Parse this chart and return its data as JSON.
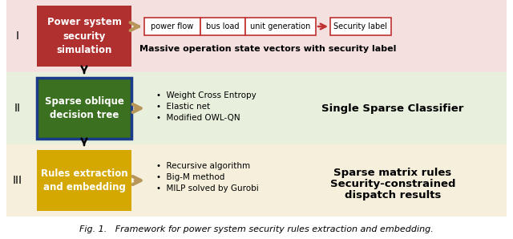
{
  "fig_width": 6.4,
  "fig_height": 2.98,
  "dpi": 100,
  "bg_color": "#ffffff",
  "row_colors": [
    "#f5e0e0",
    "#e8efdc",
    "#f5efdc"
  ],
  "left_box_colors": [
    "#b03030",
    "#3a7020",
    "#d4a800"
  ],
  "left_box_edge_colors": [
    "#b03030",
    "#1a4090",
    "#d4a800"
  ],
  "left_box_texts": [
    "Power system\nsecurity\nsimulation",
    "Sparse oblique\ndecision tree",
    "Rules extraction\nand embedding"
  ],
  "roman_numerals": [
    "I",
    "II",
    "III"
  ],
  "feat_labels": [
    "power flow",
    "bus load",
    "unit generation"
  ],
  "sec_label": "Security label",
  "section_I_desc": "Massive operation state vectors with security label",
  "section_II_bullets": [
    "Weight Cross Entropy",
    "Elastic net",
    "Modified OWL-QN"
  ],
  "section_II_bold": "Single Sparse Classifier",
  "section_III_bullets": [
    "Recursive algorithm",
    "Big-M method",
    "MILP solved by Gurobi"
  ],
  "section_III_bold_1": "Sparse matrix rules",
  "section_III_bold_2": "Security-constrained",
  "section_III_bold_3": "dispatch results",
  "caption": "Fig. 1.   Framework for power system security rules extraction and embedding.",
  "red_color": "#c03030",
  "tan_arrow_color": "#b8965a",
  "blue_border": "#1a3a8a"
}
